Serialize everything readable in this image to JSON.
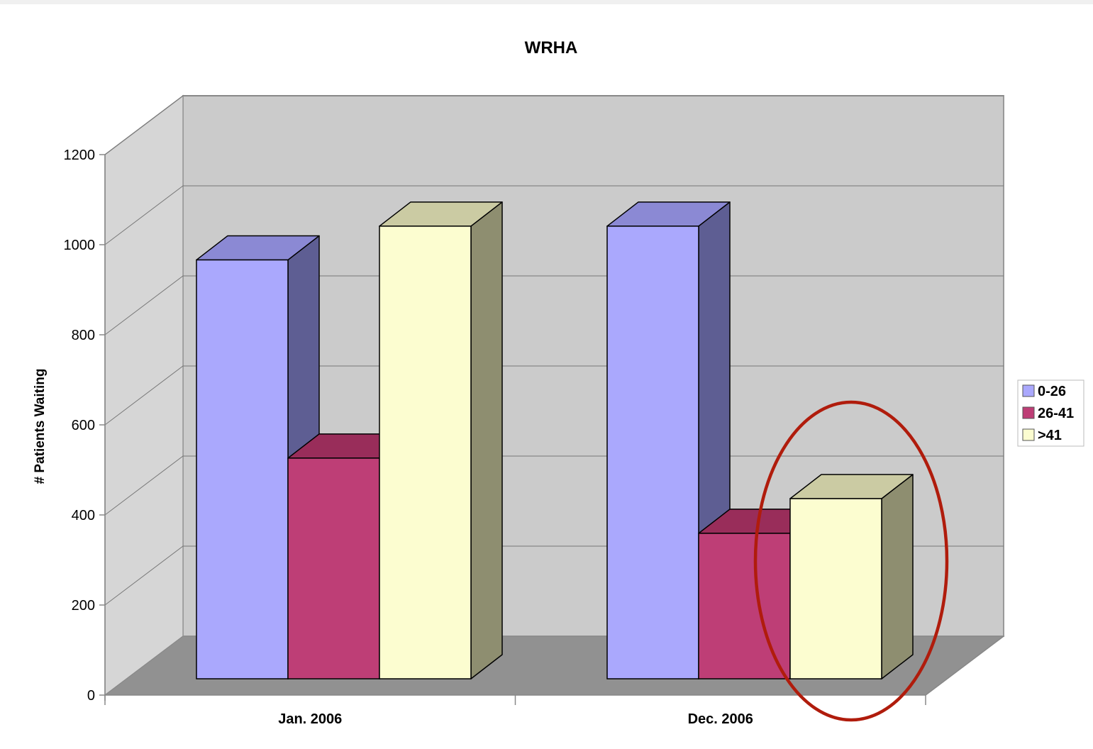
{
  "chart_data": {
    "type": "bar",
    "title": "WRHA",
    "xlabel": "",
    "ylabel": "# Patients Waiting",
    "categories": [
      "Jan. 2006",
      "Dec. 2006"
    ],
    "series": [
      {
        "name": "0-26",
        "values": [
          930,
          1005
        ],
        "color": "#aaa8fd",
        "side_color": "#5e5e93",
        "top_color": "#8b89d4"
      },
      {
        "name": "26-41",
        "values": [
          490,
          323
        ],
        "color": "#be3e76",
        "side_color": "#7a2a50",
        "top_color": "#992d5a"
      },
      {
        "name": ">41",
        "values": [
          1005,
          400
        ],
        "color": "#fcfdd0",
        "side_color": "#8e8e70",
        "top_color": "#cbcba3"
      }
    ],
    "ylim": [
      0,
      1200
    ],
    "yticks": [
      0,
      200,
      400,
      600,
      800,
      1000,
      1200
    ],
    "grid": true,
    "legend_position": "right",
    "annotation": {
      "shape": "ellipse",
      "color": "#b01c0c",
      "highlights": "Dec. 2006 >41"
    }
  }
}
